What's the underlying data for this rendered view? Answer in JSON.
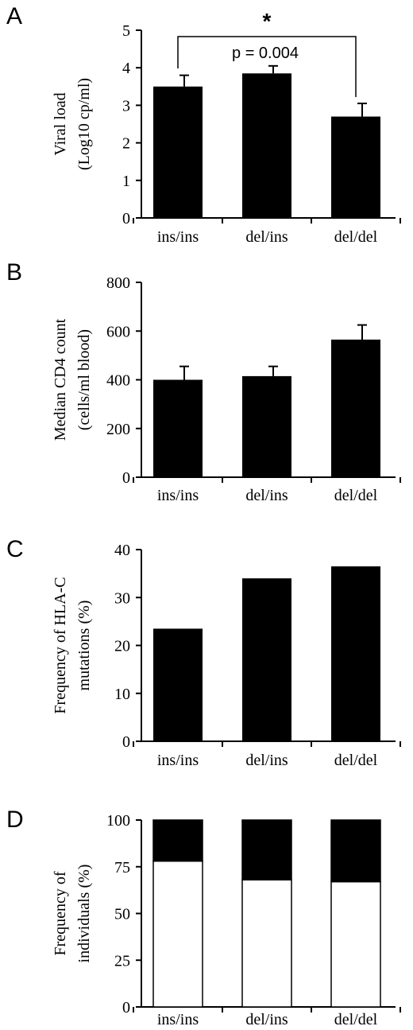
{
  "chart_data": [
    {
      "panel": "A",
      "type": "bar",
      "categories": [
        "ins/ins",
        "del/ins",
        "del/del"
      ],
      "values": [
        3.5,
        3.85,
        2.7
      ],
      "errors": [
        0.3,
        0.2,
        0.35
      ],
      "ylabel_lines": [
        "Viral load",
        "(Log10 cp/ml)"
      ],
      "ylim": [
        0,
        5
      ],
      "yticks": [
        "0",
        "1",
        "2",
        "3",
        "4",
        "5"
      ],
      "annotation": {
        "star": "*",
        "text": "p = 0.004"
      }
    },
    {
      "panel": "B",
      "type": "bar",
      "categories": [
        "ins/ins",
        "del/ins",
        "del/del"
      ],
      "values": [
        400,
        415,
        565
      ],
      "errors": [
        55,
        40,
        60
      ],
      "ylabel_lines": [
        "Median CD4 count",
        "(cells/ml blood)"
      ],
      "ylim": [
        0,
        800
      ],
      "yticks": [
        "0",
        "200",
        "400",
        "600",
        "800"
      ]
    },
    {
      "panel": "C",
      "type": "bar",
      "categories": [
        "ins/ins",
        "del/ins",
        "del/del"
      ],
      "values": [
        23.5,
        34,
        36.5
      ],
      "ylabel_lines": [
        "Frequency of HLA-C",
        "mutations (%)"
      ],
      "ylim": [
        0,
        40
      ],
      "yticks": [
        "0",
        "10",
        "20",
        "30",
        "40"
      ]
    },
    {
      "panel": "D",
      "type": "bar",
      "stacked": true,
      "categories": [
        "ins/ins",
        "del/ins",
        "del/del"
      ],
      "series": [
        {
          "values": [
            78,
            68,
            67
          ],
          "color": "#ffffff"
        },
        {
          "values": [
            22,
            32,
            33
          ],
          "color": "#000000"
        }
      ],
      "ylabel_lines": [
        "Frequency of",
        "individuals (%)"
      ],
      "ylim": [
        0,
        100
      ],
      "yticks": [
        "0",
        "25",
        "50",
        "75",
        "100"
      ]
    }
  ]
}
